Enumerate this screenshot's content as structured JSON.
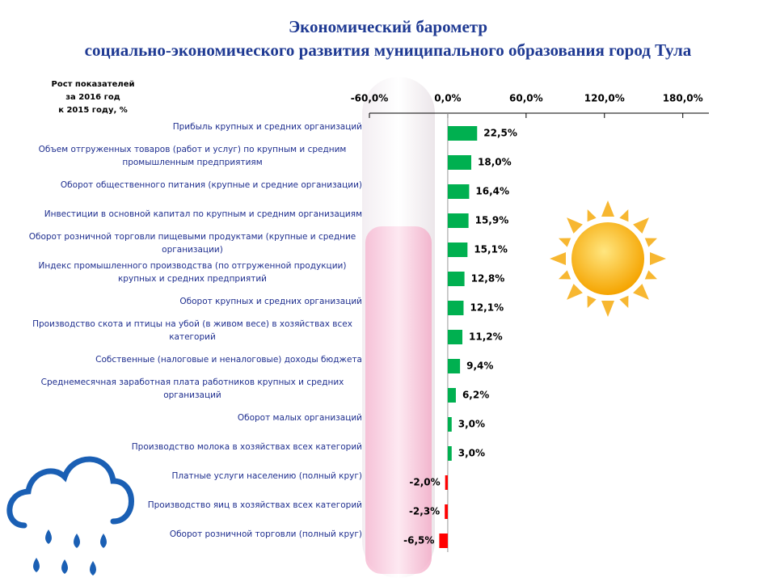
{
  "chart_data": {
    "type": "bar",
    "orientation": "horizontal",
    "title": [
      "Экономический барометр",
      "социально-экономического развития муниципального образования город Тула"
    ],
    "y_label": [
      "Рост показателей",
      "за  2016 год",
      "к 2015 году, %"
    ],
    "categories": [
      "Прибыль крупных и средних организаций",
      "Объем отгруженных товаров (работ и услуг) по крупным и средним промышленным предприятиям",
      "Оборот общественного питания (крупные и средние  организации)",
      "Инвестиции  в основной капитал по крупным и средним организациям",
      "Оборот розничной торговли пищевыми продуктами (крупные и средние организации)",
      "Индекс  промышленного производства (по отгруженной продукции) крупных и средних предприятий",
      "Оборот крупных и средних организаций",
      "Производство скота и птицы на убой (в живом весе) в хозяйствах всех категорий",
      "Собственные  (налоговые и неналоговые) доходы бюджета",
      "Среднемесячная  заработная плата работников крупных и средних организаций",
      "Оборот малых организаций",
      "Производство молока в хозяйствах всех категорий",
      "Платные услуги населению (полный круг)",
      "Производство яиц в хозяйствах всех категорий",
      "Оборот розничной торговли (полный круг)"
    ],
    "values": [
      22.5,
      18.0,
      16.4,
      15.9,
      15.1,
      12.8,
      12.1,
      11.2,
      9.4,
      6.2,
      3.0,
      3.0,
      -2.0,
      -2.3,
      -6.5
    ],
    "value_labels": [
      "22,5%",
      "18,0%",
      "16,4%",
      "15,9%",
      "15,1%",
      "12,8%",
      "12,1%",
      "11,2%",
      "9,4%",
      "6,2%",
      "3,0%",
      "3,0%",
      "-2,0%",
      "-2,3%",
      "-6,5%"
    ],
    "positive_color": "#00b050",
    "negative_color": "#ff0000",
    "xlim": [
      -60,
      200
    ],
    "xticks": [
      {
        "value": -60,
        "label": "-60,0%"
      },
      {
        "value": 0,
        "label": "0,0%"
      },
      {
        "value": 60,
        "label": "60,0%"
      },
      {
        "value": 120,
        "label": "120,0%"
      },
      {
        "value": 180,
        "label": "180,0%"
      }
    ]
  }
}
